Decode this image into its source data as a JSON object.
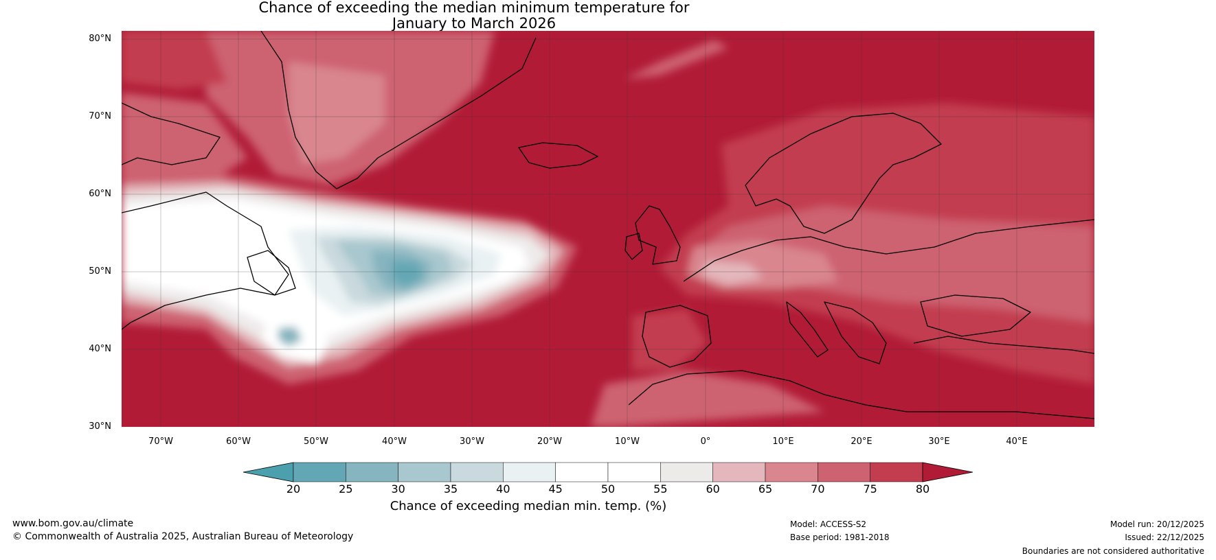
{
  "title": {
    "line1": "Chance of exceeding the median minimum temperature for",
    "line2": "January to March 2026"
  },
  "map": {
    "lat_labels": [
      "80°N",
      "70°N",
      "60°N",
      "50°N",
      "40°N",
      "30°N"
    ],
    "lon_labels": [
      "70°W",
      "60°W",
      "50°W",
      "40°W",
      "30°W",
      "20°W",
      "10°W",
      "0°",
      "10°E",
      "20°E",
      "30°E",
      "40°E"
    ],
    "lat_range": [
      30,
      81
    ],
    "lon_range": [
      -75,
      50
    ],
    "colors": {
      "very_high": "#b11b36",
      "high": "#c23d4f",
      "mid_high": "#cd6271",
      "low_high": "#d9868f",
      "neutral_warm": "#e3b7bc",
      "neutral": "#edebea",
      "white": "#ffffff",
      "teal_light": "#e9f1f3",
      "teal_2": "#c9d9dd",
      "teal_3": "#a8c7ce",
      "teal_4": "#86b4bf",
      "teal_5": "#64a7b4",
      "teal_6": "#4ca0ae"
    }
  },
  "colorbar": {
    "ticks": [
      "20",
      "25",
      "30",
      "35",
      "40",
      "45",
      "50",
      "55",
      "60",
      "65",
      "70",
      "75",
      "80"
    ],
    "colors": [
      "#4ca0ae",
      "#64a7b4",
      "#86b4bf",
      "#a8c7ce",
      "#c9d9dd",
      "#e9f1f3",
      "#ffffff",
      "#ffffff",
      "#edebea",
      "#e3b7bc",
      "#d9868f",
      "#cd6271",
      "#c23d4f",
      "#b11b36"
    ],
    "label": "Chance of exceeding median min. temp. (%)"
  },
  "footer": {
    "url": "www.bom.gov.au/climate",
    "copyright": "© Commonwealth of Australia 2025, Australian Bureau of Meteorology",
    "model": "Model: ACCESS-S2",
    "base_period": "Base period: 1981-2018",
    "model_run": "Model run: 20/12/2025",
    "issued": "Issued: 22/12/2025",
    "boundaries": "Boundaries are not considered authoritative"
  }
}
